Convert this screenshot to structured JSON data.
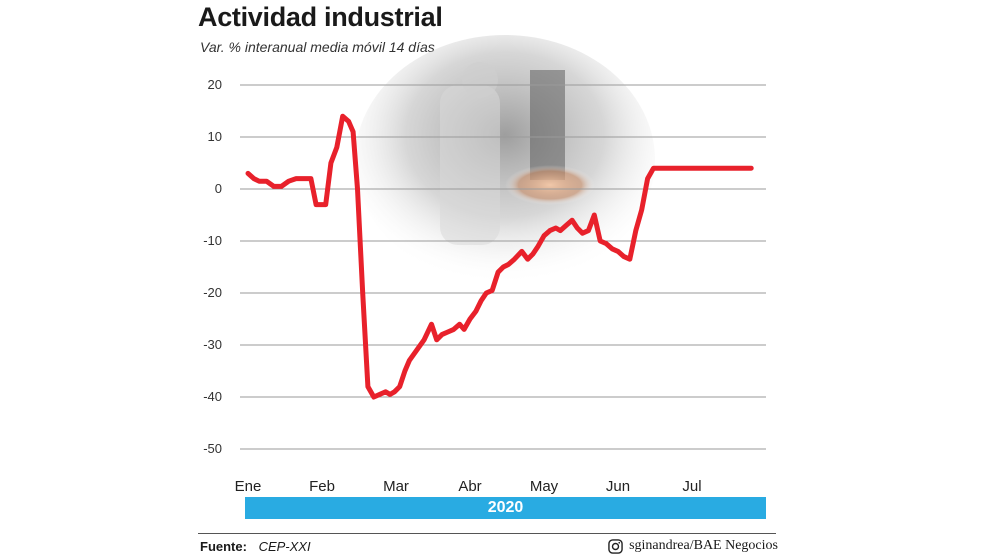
{
  "header": {
    "title": "Actividad industrial",
    "subtitle": "Var. % interanual media móvil 14 días"
  },
  "chart_data": {
    "type": "line",
    "title": "Actividad industrial",
    "subtitle": "Var. % interanual media móvil 14 días",
    "xlabel": "",
    "ylabel": "",
    "ylim": [
      -50,
      20
    ],
    "yticks": [
      20,
      10,
      0,
      -10,
      -20,
      -30,
      -40,
      -50
    ],
    "ytick_labels": [
      "20",
      "10",
      "0",
      "-10",
      "-20",
      "-30",
      "-40",
      "-50"
    ],
    "xlim": [
      0,
      7.5
    ],
    "xticks": [
      0,
      1,
      2,
      3,
      4,
      5,
      6
    ],
    "xtick_labels": [
      "Ene",
      "Feb",
      "Mar",
      "Abr",
      "May",
      "Jun",
      "Jul"
    ],
    "year_label": "2020",
    "grid": true,
    "line_color": "#e8212b",
    "series": [
      {
        "x": [
          0.0,
          0.08,
          0.15,
          0.25,
          0.35,
          0.45,
          0.55,
          0.65,
          0.75,
          0.85,
          0.92,
          0.98,
          1.05,
          1.12,
          1.2,
          1.28,
          1.36,
          1.42,
          1.48,
          1.55,
          1.62,
          1.7,
          1.78,
          1.86,
          1.92,
          1.98,
          2.05,
          2.12,
          2.18,
          2.28,
          2.38,
          2.48,
          2.55,
          2.62,
          2.7,
          2.78,
          2.86,
          2.92,
          3.0,
          3.08,
          3.15,
          3.22,
          3.3,
          3.38,
          3.45,
          3.52,
          3.6,
          3.7,
          3.78,
          3.85,
          3.92,
          4.0,
          4.08,
          4.16,
          4.22,
          4.3,
          4.38,
          4.45,
          4.52,
          4.6,
          4.68,
          4.76,
          4.84,
          4.92,
          5.0,
          5.08,
          5.16,
          5.24,
          5.32,
          5.4,
          5.48,
          5.56,
          5.64,
          5.72,
          5.8,
          5.86,
          5.92,
          6.0,
          6.08,
          6.16,
          6.24,
          6.32,
          6.4,
          6.48,
          6.56,
          6.64,
          6.72,
          6.8
        ],
        "y": [
          3,
          2,
          1.5,
          1.5,
          0.5,
          0.5,
          1.5,
          2,
          2,
          2,
          -3,
          -3,
          -3,
          5,
          8,
          14,
          13,
          11,
          0,
          -20,
          -38,
          -40,
          -39.5,
          -39,
          -39.5,
          -39,
          -38,
          -35,
          -33,
          -31,
          -29,
          -26,
          -29,
          -28,
          -27.5,
          -27,
          -26,
          -27,
          -25,
          -23.5,
          -21.5,
          -20,
          -19.5,
          -16,
          -15,
          -14.5,
          -13.5,
          -12,
          -13.5,
          -12.5,
          -11,
          -9,
          -8,
          -7.5,
          -8,
          -7,
          -6,
          -7.5,
          -8.5,
          -8,
          -5,
          -10,
          -10.5,
          -11.5,
          -12,
          -13,
          -13.5,
          -8,
          -4,
          2,
          4,
          4,
          4,
          4,
          4,
          4,
          4,
          4,
          4,
          4,
          4,
          4,
          4,
          4,
          4,
          4,
          4,
          4
        ]
      }
    ]
  },
  "footer": {
    "source_label": "Fuente:",
    "source_value": "CEP-XXI",
    "credit": "sginandrea/BAE Negocios",
    "credit_icon": "instagram-icon"
  }
}
